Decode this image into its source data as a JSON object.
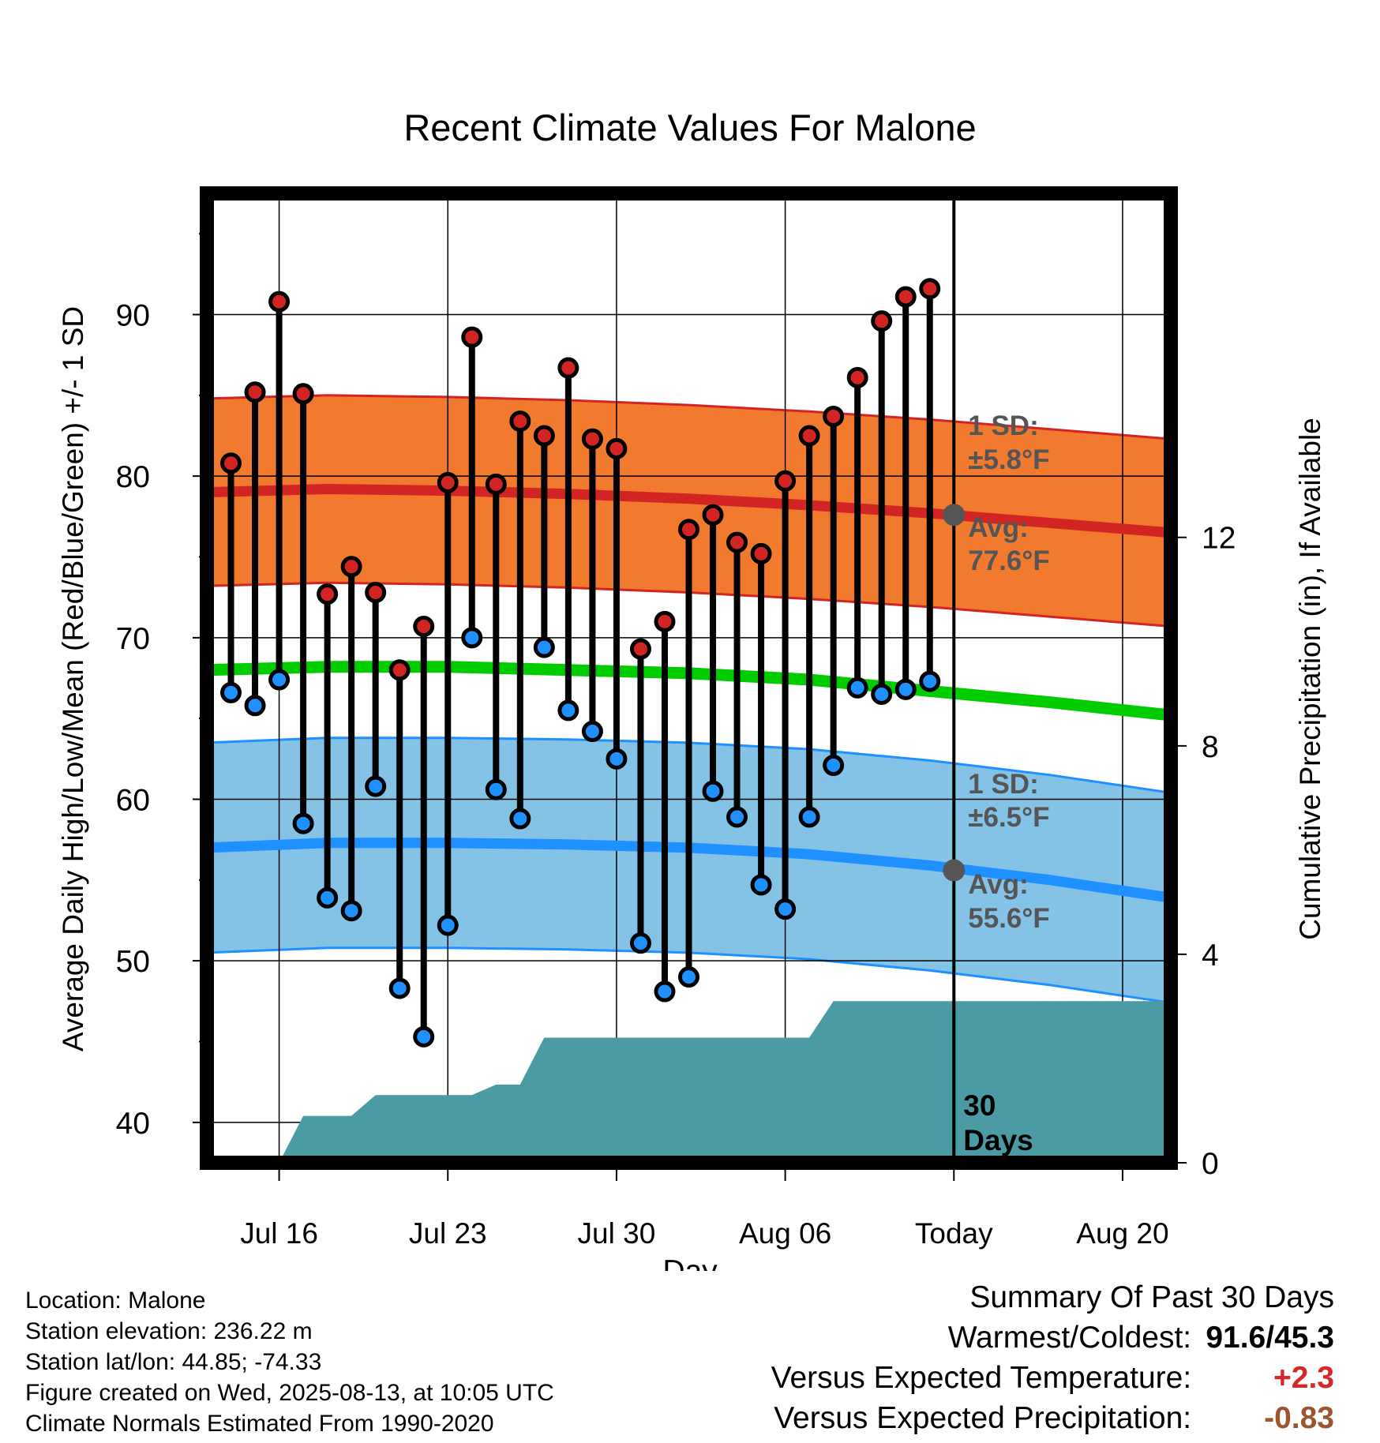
{
  "chart_data": {
    "type": "line",
    "title": "Recent Climate Values For Malone",
    "xlabel": "Day",
    "ylabel": "Average Daily High/Low/Mean (Red/Blue/Green) +/- 1 SD",
    "y2label": "Cumulative Precipitation (in), If Available",
    "ylim": [
      37.5,
      97.5
    ],
    "y2lim": [
      0,
      18.6
    ],
    "yticks": [
      "40",
      "50",
      "60",
      "70",
      "80",
      "90"
    ],
    "y2ticks": [
      "0",
      "4",
      "8",
      "12"
    ],
    "xlim": [
      "2025-07-13",
      "2025-08-22"
    ],
    "xticks": [
      {
        "date": "2025-07-16",
        "label": "Jul 16"
      },
      {
        "date": "2025-07-23",
        "label": "Jul 23"
      },
      {
        "date": "2025-07-30",
        "label": "Jul 30"
      },
      {
        "date": "2025-08-06",
        "label": "Aug 06"
      },
      {
        "date": "2025-08-13",
        "label": "Today"
      },
      {
        "date": "2025-08-20",
        "label": "Aug 20"
      }
    ],
    "grid": true,
    "today": "2025-08-13",
    "observed": {
      "dates": [
        "2025-07-14",
        "2025-07-15",
        "2025-07-16",
        "2025-07-17",
        "2025-07-18",
        "2025-07-19",
        "2025-07-20",
        "2025-07-21",
        "2025-07-22",
        "2025-07-23",
        "2025-07-24",
        "2025-07-25",
        "2025-07-26",
        "2025-07-27",
        "2025-07-28",
        "2025-07-29",
        "2025-07-30",
        "2025-07-31",
        "2025-08-01",
        "2025-08-02",
        "2025-08-03",
        "2025-08-04",
        "2025-08-05",
        "2025-08-06",
        "2025-08-07",
        "2025-08-08",
        "2025-08-09",
        "2025-08-10",
        "2025-08-11",
        "2025-08-12"
      ],
      "high": [
        80.8,
        85.2,
        90.8,
        85.1,
        72.7,
        74.4,
        72.8,
        68.0,
        70.7,
        79.6,
        88.6,
        79.5,
        83.4,
        82.5,
        86.7,
        82.3,
        81.7,
        69.3,
        71.0,
        76.7,
        77.6,
        75.9,
        75.2,
        79.7,
        82.5,
        83.7,
        86.1,
        89.6,
        91.1,
        91.6
      ],
      "low": [
        66.6,
        65.8,
        67.4,
        58.5,
        53.9,
        53.1,
        60.8,
        48.3,
        45.3,
        52.2,
        70.0,
        60.6,
        58.8,
        69.4,
        65.5,
        64.2,
        62.5,
        51.1,
        48.1,
        49.0,
        60.5,
        58.9,
        54.7,
        53.2,
        58.9,
        62.1,
        66.9,
        66.5,
        66.8,
        67.3
      ]
    },
    "normals": {
      "dates": [
        "2025-07-13",
        "2025-07-18",
        "2025-07-23",
        "2025-07-28",
        "2025-08-02",
        "2025-08-07",
        "2025-08-12",
        "2025-08-17",
        "2025-08-22"
      ],
      "avg_high": [
        79.0,
        79.2,
        79.1,
        78.9,
        78.6,
        78.2,
        77.7,
        77.1,
        76.5
      ],
      "high_sd": 5.8,
      "avg_low": [
        57.0,
        57.3,
        57.3,
        57.2,
        57.0,
        56.6,
        55.9,
        55.0,
        53.9
      ],
      "low_sd": 6.5,
      "mean": [
        68.0,
        68.2,
        68.2,
        68.0,
        67.8,
        67.4,
        66.7,
        66.0,
        65.2
      ]
    },
    "precipitation": {
      "dates": [
        "2025-07-16",
        "2025-07-17",
        "2025-07-18",
        "2025-07-19",
        "2025-07-20",
        "2025-07-21",
        "2025-07-22",
        "2025-07-23",
        "2025-07-24",
        "2025-07-25",
        "2025-07-26",
        "2025-07-27",
        "2025-07-28",
        "2025-08-07",
        "2025-08-08",
        "2025-08-22"
      ],
      "cumulative": [
        0,
        0.9,
        0.9,
        0.9,
        1.3,
        1.3,
        1.3,
        1.3,
        1.3,
        1.5,
        1.5,
        2.4,
        2.4,
        2.4,
        3.1,
        3.1
      ]
    },
    "annotations": {
      "high_sd_label": "1 SD:",
      "high_sd_value": "±5.8°F",
      "high_avg_label": "Avg:",
      "high_avg_value": "77.6°F",
      "high_avg_y": 77.6,
      "low_sd_label": "1 SD:",
      "low_sd_value": "±6.5°F",
      "low_avg_label": "Avg:",
      "low_avg_value": "55.6°F",
      "low_avg_y": 55.6,
      "period_line1": "30",
      "period_line2": "Days"
    },
    "colors": {
      "high_band": "#f27a2e",
      "high_line": "#d32424",
      "low_band": "#84c2e6",
      "low_line": "#1e90ff",
      "mean_line": "#00cc00",
      "precip": "#4a9ba3",
      "high_dot": "#d32424",
      "low_dot": "#1e90ff",
      "avg_marker": "#555555",
      "annotation_text": "#555555"
    }
  },
  "meta": {
    "location": "Location: Malone",
    "elevation": "Station elevation: 236.22 m",
    "latlon": "Station lat/lon: 44.85; -74.33",
    "created": "Figure created on Wed, 2025-08-13, at 10:05 UTC",
    "normals": "Climate Normals Estimated From 1990-2020"
  },
  "summary": {
    "title": "Summary Of Past 30 Days",
    "warmest_label": "Warmest/Coldest:",
    "warmest_value": "91.6/45.3",
    "temp_label": "Versus Expected Temperature:",
    "temp_value": "+2.3",
    "precip_label": "Versus Expected Precipitation:",
    "precip_value": "-0.83"
  }
}
